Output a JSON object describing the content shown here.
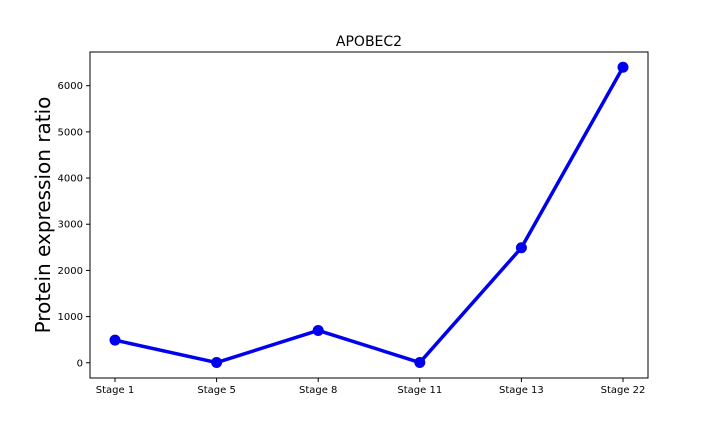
{
  "chart_data": {
    "type": "line",
    "title": "APOBEC2",
    "xlabel": "",
    "ylabel": "Protein expression ratio",
    "categories": [
      "Stage 1",
      "Stage 5",
      "Stage 8",
      "Stage 11",
      "Stage 13",
      "Stage 22"
    ],
    "series": [
      {
        "values": [
          490,
          5,
          700,
          5,
          2490,
          6400
        ]
      }
    ],
    "ylim": [
      -330,
      6730
    ],
    "yticks": [
      "0",
      "1000",
      "2000",
      "3000",
      "4000",
      "5000",
      "6000"
    ],
    "grid": false,
    "color": "#0000ee"
  }
}
